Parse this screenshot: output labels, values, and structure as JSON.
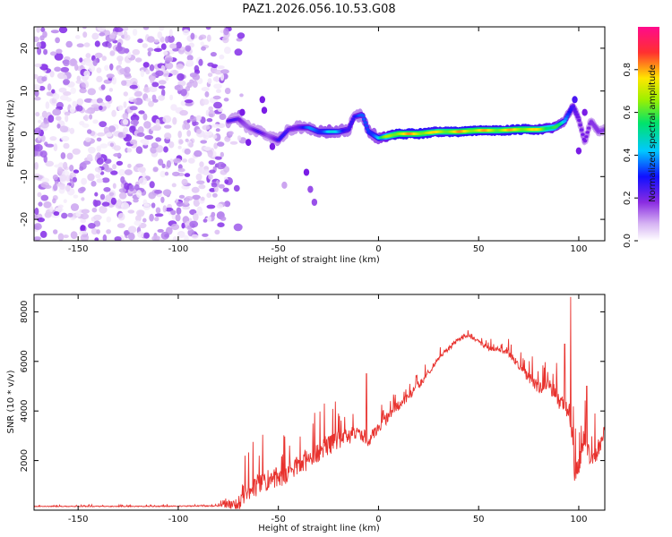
{
  "figure_title": "PAZ1.2026.056.10.53.G08",
  "colors": {
    "snr_line": "#e8322e",
    "axis": "#000000",
    "spectrogram_palette": [
      "#ffffff",
      "#e0c6f4",
      "#b784ec",
      "#7a1ce6",
      "#1a10ff",
      "#00d8ff",
      "#00e36b",
      "#9ef000",
      "#ffe600",
      "#ff3030",
      "#ff0a8c"
    ]
  },
  "chart_data": [
    {
      "type": "heatmap",
      "name": "spectrogram",
      "xlabel": "Height of straight line (km)",
      "ylabel": "Frequency (Hz)",
      "xlim": [
        -172,
        113
      ],
      "ylim": [
        -25,
        25
      ],
      "xticks": [
        -150,
        -100,
        -50,
        0,
        50,
        100
      ],
      "yticks": [
        -20,
        -10,
        0,
        10,
        20
      ],
      "colorbar": {
        "label": "Normalized spectral amplitude",
        "range": [
          0,
          1
        ],
        "ticks": [
          "0.0",
          "0.2",
          "0.4",
          "0.6",
          "0.8"
        ]
      },
      "noise_region": {
        "x_range": [
          -172,
          -75
        ],
        "freq_range": [
          -25,
          25
        ],
        "amplitude_range": [
          0.03,
          0.3
        ]
      },
      "ridge": [
        {
          "x": -75,
          "f": 3.0,
          "a": 0.35
        },
        {
          "x": -70,
          "f": 3.5,
          "a": 0.35
        },
        {
          "x": -65,
          "f": 1.5,
          "a": 0.3
        },
        {
          "x": -60,
          "f": 0.5,
          "a": 0.35
        },
        {
          "x": -55,
          "f": -0.5,
          "a": 0.3
        },
        {
          "x": -50,
          "f": -1.5,
          "a": 0.4
        },
        {
          "x": -45,
          "f": 1.0,
          "a": 0.35
        },
        {
          "x": -40,
          "f": 1.5,
          "a": 0.4
        },
        {
          "x": -35,
          "f": 1.5,
          "a": 0.45
        },
        {
          "x": -30,
          "f": 0.5,
          "a": 0.5
        },
        {
          "x": -25,
          "f": 0.5,
          "a": 0.55
        },
        {
          "x": -20,
          "f": 0.5,
          "a": 0.5
        },
        {
          "x": -15,
          "f": 1.0,
          "a": 0.45
        },
        {
          "x": -12,
          "f": 4.0,
          "a": 0.4
        },
        {
          "x": -8,
          "f": 4.5,
          "a": 0.45
        },
        {
          "x": -5,
          "f": 0.5,
          "a": 0.5
        },
        {
          "x": 0,
          "f": -1.0,
          "a": 0.55
        },
        {
          "x": 5,
          "f": -0.5,
          "a": 0.75
        },
        {
          "x": 10,
          "f": 0.0,
          "a": 0.85
        },
        {
          "x": 20,
          "f": 0.0,
          "a": 0.85
        },
        {
          "x": 30,
          "f": 0.5,
          "a": 0.8
        },
        {
          "x": 40,
          "f": 0.5,
          "a": 0.85
        },
        {
          "x": 50,
          "f": 0.8,
          "a": 0.85
        },
        {
          "x": 60,
          "f": 0.8,
          "a": 0.82
        },
        {
          "x": 70,
          "f": 1.0,
          "a": 0.85
        },
        {
          "x": 80,
          "f": 1.0,
          "a": 0.8
        },
        {
          "x": 88,
          "f": 1.5,
          "a": 0.7
        },
        {
          "x": 93,
          "f": 3.0,
          "a": 0.5
        },
        {
          "x": 97,
          "f": 6.5,
          "a": 0.45
        },
        {
          "x": 100,
          "f": 3.5,
          "a": 0.35
        },
        {
          "x": 103,
          "f": -2.0,
          "a": 0.3
        },
        {
          "x": 106,
          "f": 3.0,
          "a": 0.3
        },
        {
          "x": 110,
          "f": 0.5,
          "a": 0.35
        },
        {
          "x": 113,
          "f": 1.0,
          "a": 0.3
        }
      ],
      "spots": [
        {
          "x": -58,
          "f": 8.0,
          "a": 0.3
        },
        {
          "x": -57,
          "f": 5.5,
          "a": 0.3
        },
        {
          "x": -53,
          "f": -3.0,
          "a": 0.3
        },
        {
          "x": -36,
          "f": -9.0,
          "a": 0.3
        },
        {
          "x": -34,
          "f": -13.0,
          "a": 0.25
        },
        {
          "x": -32,
          "f": -16.0,
          "a": 0.25
        },
        {
          "x": -47,
          "f": -12.0,
          "a": 0.15
        },
        {
          "x": -68,
          "f": 5.0,
          "a": 0.3
        },
        {
          "x": -65,
          "f": -2.0,
          "a": 0.3
        },
        {
          "x": 98,
          "f": 8.0,
          "a": 0.35
        },
        {
          "x": 100,
          "f": -4.0,
          "a": 0.3
        },
        {
          "x": 103,
          "f": 5.0,
          "a": 0.3
        }
      ]
    },
    {
      "type": "line",
      "name": "snr",
      "xlabel": "Height of straight line (km)",
      "ylabel": "SNR (10 * v/v)",
      "xlim": [
        -172,
        113
      ],
      "ylim": [
        0,
        8700
      ],
      "xticks": [
        -150,
        -100,
        -50,
        0,
        50,
        100
      ],
      "yticks": [
        2000,
        4000,
        6000,
        8000
      ],
      "trend": [
        {
          "x": -172,
          "y": 150
        },
        {
          "x": -120,
          "y": 150
        },
        {
          "x": -80,
          "y": 170
        },
        {
          "x": -70,
          "y": 250
        },
        {
          "x": -65,
          "y": 700
        },
        {
          "x": -60,
          "y": 1000
        },
        {
          "x": -50,
          "y": 1300
        },
        {
          "x": -40,
          "y": 1700
        },
        {
          "x": -30,
          "y": 2300
        },
        {
          "x": -20,
          "y": 2800
        },
        {
          "x": -10,
          "y": 3100
        },
        {
          "x": -5,
          "y": 2800
        },
        {
          "x": 0,
          "y": 3300
        },
        {
          "x": 10,
          "y": 4200
        },
        {
          "x": 20,
          "y": 5000
        },
        {
          "x": 30,
          "y": 6100
        },
        {
          "x": 40,
          "y": 6900
        },
        {
          "x": 45,
          "y": 7050
        },
        {
          "x": 50,
          "y": 6800
        },
        {
          "x": 55,
          "y": 6500
        },
        {
          "x": 60,
          "y": 6500
        },
        {
          "x": 65,
          "y": 6300
        },
        {
          "x": 70,
          "y": 5800
        },
        {
          "x": 75,
          "y": 5300
        },
        {
          "x": 80,
          "y": 4900
        },
        {
          "x": 85,
          "y": 5100
        },
        {
          "x": 90,
          "y": 4400
        },
        {
          "x": 95,
          "y": 4000
        },
        {
          "x": 97,
          "y": 2800
        },
        {
          "x": 98,
          "y": 1300
        },
        {
          "x": 100,
          "y": 1800
        },
        {
          "x": 103,
          "y": 2800
        },
        {
          "x": 106,
          "y": 2000
        },
        {
          "x": 109,
          "y": 2200
        },
        {
          "x": 113,
          "y": 3200
        }
      ],
      "noise": [
        {
          "x": -172,
          "amp": 30
        },
        {
          "x": -80,
          "amp": 40
        },
        {
          "x": -65,
          "amp": 900
        },
        {
          "x": -45,
          "amp": 900
        },
        {
          "x": -25,
          "amp": 800
        },
        {
          "x": 0,
          "amp": 500
        },
        {
          "x": 30,
          "amp": 200
        },
        {
          "x": 60,
          "amp": 200
        },
        {
          "x": 90,
          "amp": 700
        },
        {
          "x": 100,
          "amp": 900
        },
        {
          "x": 113,
          "amp": 500
        }
      ],
      "spikes": [
        {
          "x": -6,
          "y": 5500
        },
        {
          "x": 96,
          "y": 8600
        },
        {
          "x": 93,
          "y": 6700
        },
        {
          "x": 104,
          "y": 5000
        },
        {
          "x": 108,
          "y": 3900
        },
        {
          "x": -27,
          "y": 4300
        },
        {
          "x": -20,
          "y": 3900
        }
      ]
    }
  ]
}
